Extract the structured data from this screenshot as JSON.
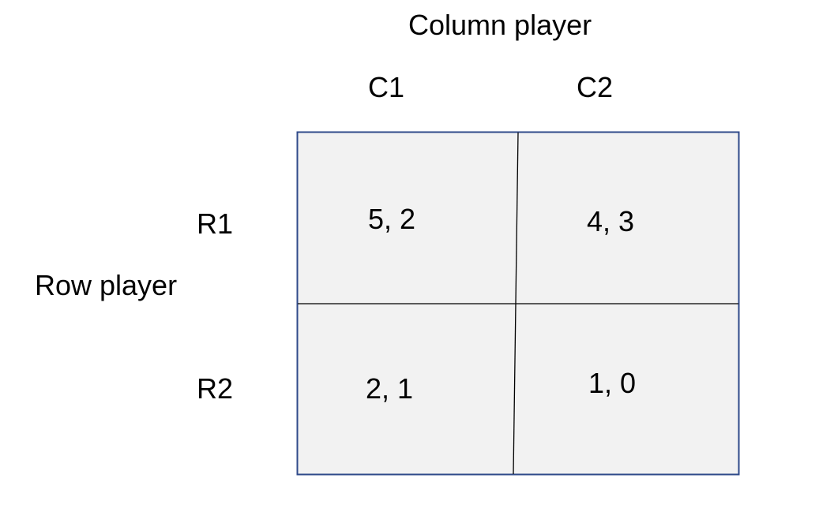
{
  "column_player": {
    "title": "Column player",
    "strategies": [
      "C1",
      "C2"
    ]
  },
  "row_player": {
    "title": "Row player",
    "strategies": [
      "R1",
      "R2"
    ]
  },
  "payoffs": [
    [
      "5, 2",
      "4, 3"
    ],
    [
      "2, 1",
      "1, 0"
    ]
  ],
  "colors": {
    "cell_fill": "#f2f2f2",
    "border": "#2f4a8a",
    "inner_line": "#000000",
    "text": "#000000"
  }
}
